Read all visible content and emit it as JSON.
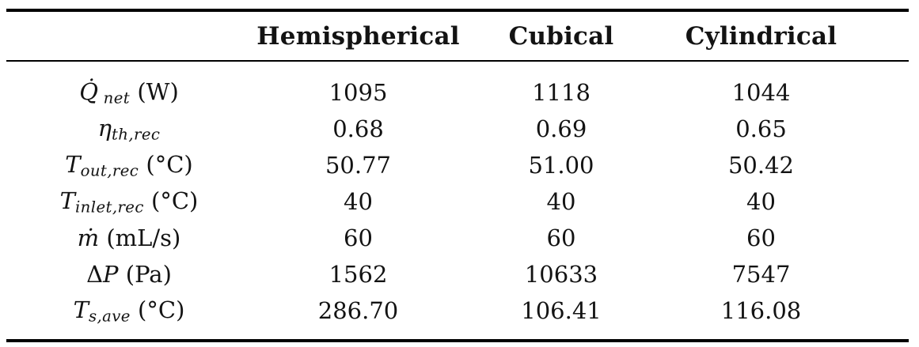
{
  "page": {
    "background": "#ffffff",
    "text_color": "#131313",
    "rule_color": "#000000"
  },
  "table": {
    "columns": [
      {
        "id": "parameter",
        "label": ""
      },
      {
        "id": "hemispherical",
        "label": "Hemispherical"
      },
      {
        "id": "cubical",
        "label": "Cubical"
      },
      {
        "id": "cylindrical",
        "label": "Cylindrical"
      }
    ],
    "rows": [
      {
        "id": "net-heat-rate",
        "label_text": "Q̇_net (W)",
        "label_parts": [
          {
            "t": "var",
            "x": "Q̇"
          },
          {
            "t": "sub",
            "x": " net"
          },
          {
            "t": "unit",
            "x": " (W)"
          }
        ],
        "values": [
          "1095",
          "1118",
          "1044"
        ]
      },
      {
        "id": "thermal-efficiency-receiver",
        "label_text": "η_th,rec",
        "label_parts": [
          {
            "t": "var",
            "x": "η"
          },
          {
            "t": "sub",
            "x": "th,rec"
          }
        ],
        "values": [
          "0.68",
          "0.69",
          "0.65"
        ]
      },
      {
        "id": "outlet-temperature-receiver",
        "label_text": "T_out,rec (°C)",
        "label_parts": [
          {
            "t": "var",
            "x": "T"
          },
          {
            "t": "sub",
            "x": "out,rec"
          },
          {
            "t": "unit",
            "x": " (°C)"
          }
        ],
        "values": [
          "50.77",
          "51.00",
          "50.42"
        ]
      },
      {
        "id": "inlet-temperature-receiver",
        "label_text": "T_inlet,rec (°C)",
        "label_parts": [
          {
            "t": "var",
            "x": "T"
          },
          {
            "t": "sub",
            "x": "inlet,rec"
          },
          {
            "t": "unit",
            "x": " (°C)"
          }
        ],
        "values": [
          "40",
          "40",
          "40"
        ]
      },
      {
        "id": "mass-flow-rate",
        "label_text": "ṁ (mL/s)",
        "label_parts": [
          {
            "t": "var",
            "x": "ṁ"
          },
          {
            "t": "unit",
            "x": " (mL/s)"
          }
        ],
        "values": [
          "60",
          "60",
          "60"
        ]
      },
      {
        "id": "pressure-drop",
        "label_text": "ΔP (Pa)",
        "label_parts": [
          {
            "t": "sym",
            "x": "Δ"
          },
          {
            "t": "var",
            "x": "P"
          },
          {
            "t": "unit",
            "x": " (Pa)"
          }
        ],
        "values": [
          "1562",
          "10633",
          "7547"
        ]
      },
      {
        "id": "average-surface-temperature",
        "label_text": "T_s,ave (°C)",
        "label_parts": [
          {
            "t": "var",
            "x": "T"
          },
          {
            "t": "sub",
            "x": "s,ave"
          },
          {
            "t": "unit",
            "x": " (°C)"
          }
        ],
        "values": [
          "286.70",
          "106.41",
          "116.08"
        ]
      }
    ]
  }
}
